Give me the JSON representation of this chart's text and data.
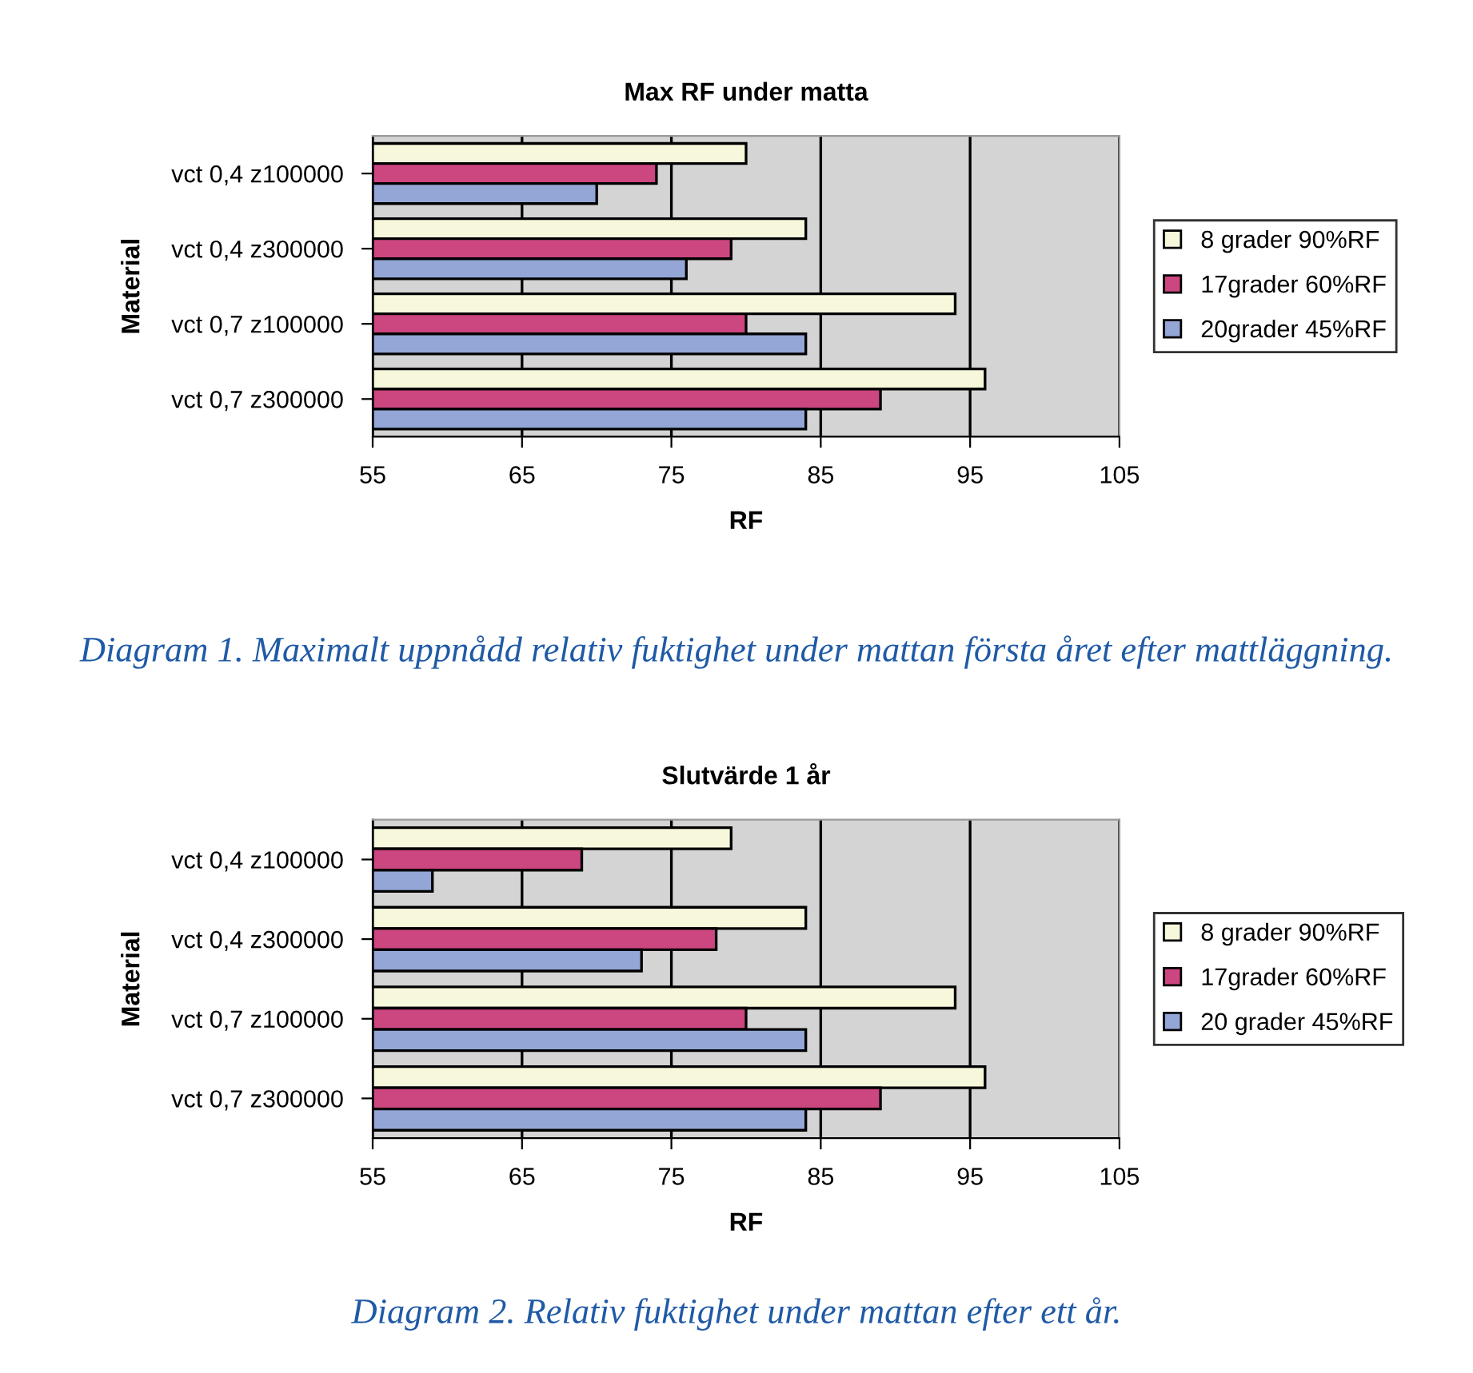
{
  "chart_data": [
    {
      "type": "bar",
      "orientation": "horizontal",
      "title": "Max RF under matta",
      "xlabel": "RF",
      "ylabel": "Material",
      "categories": [
        "vct 0,4 z100000",
        "vct 0,4 z300000",
        "vct 0,7 z100000",
        "vct 0,7 z300000"
      ],
      "series": [
        {
          "name": "8 grader 90%RF",
          "color": "#f7f7dc",
          "values": [
            80,
            84,
            94,
            96
          ]
        },
        {
          "name": "17grader 60%RF",
          "color": "#cc4680",
          "values": [
            74,
            79,
            80,
            89
          ]
        },
        {
          "name": "20grader 45%RF",
          "color": "#93a6d6",
          "values": [
            70,
            76,
            84,
            84
          ]
        }
      ],
      "xlim": [
        55,
        105
      ],
      "xticks": [
        55,
        65,
        75,
        85,
        95,
        105
      ],
      "grid": "x",
      "legend": "right",
      "annotations": [
        "Diagram 1. Maximalt uppnådd relativ fuktighet under mattan första året efter mattläggning."
      ]
    },
    {
      "type": "bar",
      "orientation": "horizontal",
      "title": "Slutvärde 1 år",
      "xlabel": "RF",
      "ylabel": "Material",
      "categories": [
        "vct 0,4 z100000",
        "vct 0,4 z300000",
        "vct 0,7 z100000",
        "vct 0,7 z300000"
      ],
      "series": [
        {
          "name": "8 grader 90%RF",
          "color": "#f7f7dc",
          "values": [
            79,
            84,
            94,
            96
          ]
        },
        {
          "name": "17grader 60%RF",
          "color": "#cc4680",
          "values": [
            69,
            78,
            80,
            89
          ]
        },
        {
          "name": "20 grader 45%RF",
          "color": "#93a6d6",
          "values": [
            59,
            73,
            84,
            84
          ]
        }
      ],
      "xlim": [
        55,
        105
      ],
      "xticks": [
        55,
        65,
        75,
        85,
        95,
        105
      ],
      "grid": "x",
      "legend": "right",
      "annotations": [
        "Diagram 2. Relativ fuktighet under mattan efter ett år."
      ]
    }
  ]
}
